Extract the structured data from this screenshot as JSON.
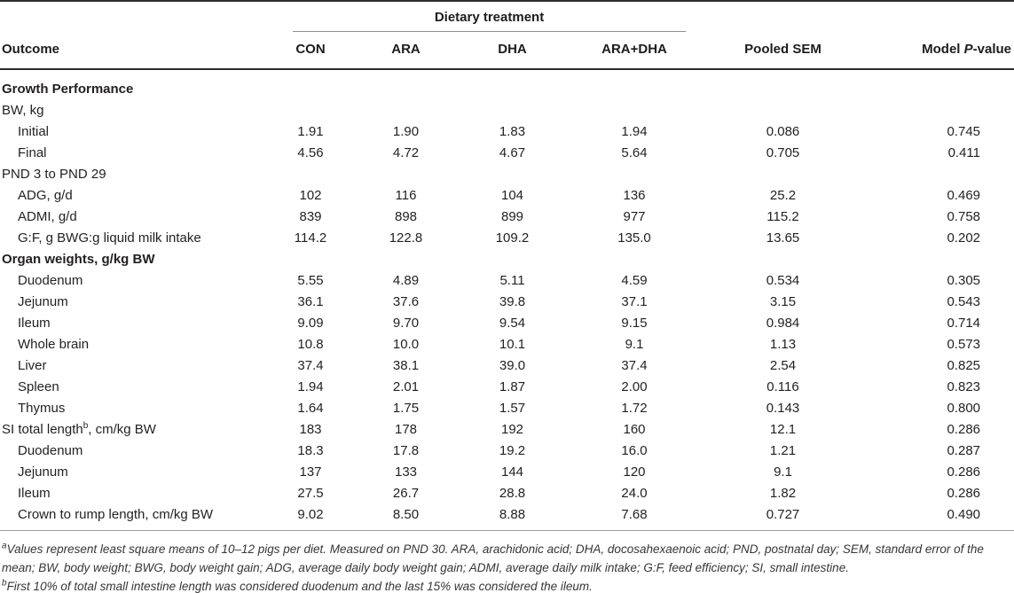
{
  "table": {
    "group_header": "Dietary treatment",
    "columns": {
      "outcome": "Outcome",
      "con": "CON",
      "ara": "ARA",
      "dha": "DHA",
      "aradha": "ARA+DHA",
      "sem": "Pooled SEM",
      "pvalue_prefix": "Model ",
      "pvalue_italic": "P",
      "pvalue_suffix": "-value"
    },
    "rows": [
      {
        "type": "section",
        "label": "Growth Performance",
        "values": []
      },
      {
        "type": "plain",
        "label": "BW, kg",
        "values": []
      },
      {
        "type": "indent",
        "label": "Initial",
        "values": [
          "1.91",
          "1.90",
          "1.83",
          "1.94",
          "0.086",
          "0.745"
        ]
      },
      {
        "type": "indent",
        "label": "Final",
        "values": [
          "4.56",
          "4.72",
          "4.67",
          "5.64",
          "0.705",
          "0.411"
        ]
      },
      {
        "type": "plain",
        "label": "PND 3 to PND 29",
        "values": []
      },
      {
        "type": "indent",
        "label": "ADG, g/d",
        "values": [
          "102",
          "116",
          "104",
          "136",
          "25.2",
          "0.469"
        ]
      },
      {
        "type": "indent",
        "label": "ADMI, g/d",
        "values": [
          "839",
          "898",
          "899",
          "977",
          "115.2",
          "0.758"
        ]
      },
      {
        "type": "indent",
        "label": "G:F, g BWG:g liquid milk intake",
        "values": [
          "114.2",
          "122.8",
          "109.2",
          "135.0",
          "13.65",
          "0.202"
        ]
      },
      {
        "type": "section",
        "label": "Organ weights, g/kg BW",
        "values": []
      },
      {
        "type": "indent",
        "label": "Duodenum",
        "values": [
          "5.55",
          "4.89",
          "5.11",
          "4.59",
          "0.534",
          "0.305"
        ]
      },
      {
        "type": "indent",
        "label": "Jejunum",
        "values": [
          "36.1",
          "37.6",
          "39.8",
          "37.1",
          "3.15",
          "0.543"
        ]
      },
      {
        "type": "indent",
        "label": "Ileum",
        "values": [
          "9.09",
          "9.70",
          "9.54",
          "9.15",
          "0.984",
          "0.714"
        ]
      },
      {
        "type": "indent",
        "label": "Whole brain",
        "values": [
          "10.8",
          "10.0",
          "10.1",
          "9.1",
          "1.13",
          "0.573"
        ]
      },
      {
        "type": "indent",
        "label": "Liver",
        "values": [
          "37.4",
          "38.1",
          "39.0",
          "37.4",
          "2.54",
          "0.825"
        ]
      },
      {
        "type": "indent",
        "label": "Spleen",
        "values": [
          "1.94",
          "2.01",
          "1.87",
          "2.00",
          "0.116",
          "0.823"
        ]
      },
      {
        "type": "indent",
        "label": "Thymus",
        "values": [
          "1.64",
          "1.75",
          "1.57",
          "1.72",
          "0.143",
          "0.800"
        ]
      },
      {
        "type": "plain",
        "label": "SI total length",
        "sup": "b",
        "label_after": ", cm/kg BW",
        "values": [
          "183",
          "178",
          "192",
          "160",
          "12.1",
          "0.286"
        ]
      },
      {
        "type": "indent",
        "label": "Duodenum",
        "values": [
          "18.3",
          "17.8",
          "19.2",
          "16.0",
          "1.21",
          "0.287"
        ]
      },
      {
        "type": "indent",
        "label": "Jejunum",
        "values": [
          "137",
          "133",
          "144",
          "120",
          "9.1",
          "0.286"
        ]
      },
      {
        "type": "indent",
        "label": "Ileum",
        "values": [
          "27.5",
          "26.7",
          "28.8",
          "24.0",
          "1.82",
          "0.286"
        ]
      },
      {
        "type": "indent",
        "label": "Crown to rump length, cm/kg BW",
        "values": [
          "9.02",
          "8.50",
          "8.88",
          "7.68",
          "0.727",
          "0.490"
        ]
      }
    ]
  },
  "footnotes": [
    {
      "marker": "a",
      "text": "Values represent least square means of 10–12 pigs per diet. Measured on PND 30. ARA, arachidonic acid; DHA, docosahexaenoic acid; PND, postnatal day; SEM, standard error of the mean; BW, body weight; BWG, body weight gain; ADG, average daily body weight gain; ADMI, average daily milk intake; G:F, feed efficiency; SI, small intestine."
    },
    {
      "marker": "b",
      "text": "First 10% of total small intestine length was considered duodenum and the last 15% was considered the ileum."
    }
  ]
}
